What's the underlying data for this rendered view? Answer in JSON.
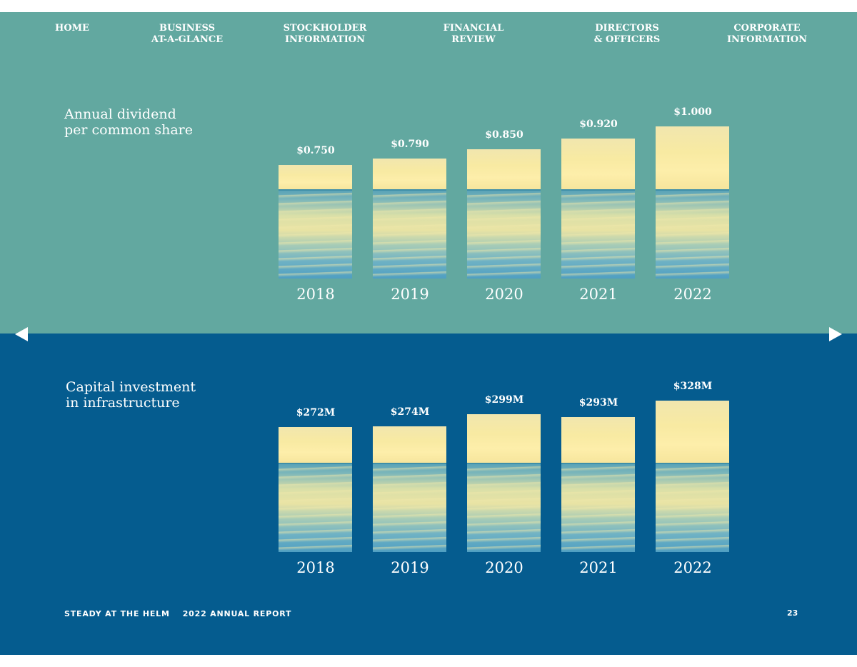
{
  "nav": {
    "items": [
      "HOME",
      "BUSINESS\nAT-A-GLANCE",
      "STOCKHOLDER\nINFORMATION",
      "FINANCIAL\nREVIEW",
      "DIRECTORS\n& OFFICERS",
      "CORPORATE\nINFORMATION"
    ]
  },
  "colors": {
    "top_panel": "#62a8a0",
    "bottom_panel": "#055c8f",
    "text": "#ffffff"
  },
  "footer": {
    "left_1": "STEADY AT THE HELM",
    "left_2": "2022 ANNUAL REPORT",
    "page_number": "23"
  },
  "icons": {
    "prev": "triangle-left-icon",
    "next": "triangle-right-icon"
  },
  "chart_data": [
    {
      "type": "bar",
      "title": "Annual dividend\nper common share",
      "categories": [
        "2018",
        "2019",
        "2020",
        "2021",
        "2022"
      ],
      "values": [
        0.75,
        0.79,
        0.85,
        0.92,
        1.0
      ],
      "value_labels": [
        "$0.750",
        "$0.790",
        "$0.850",
        "$0.920",
        "$1.000"
      ],
      "ylim": [
        0,
        1.0
      ],
      "grid": false,
      "legend": "none"
    },
    {
      "type": "bar",
      "title": "Capital investment\nin infrastructure",
      "categories": [
        "2018",
        "2019",
        "2020",
        "2021",
        "2022"
      ],
      "values": [
        272,
        274,
        299,
        293,
        328
      ],
      "value_labels": [
        "$272M",
        "$274M",
        "$299M",
        "$293M",
        "$328M"
      ],
      "ylim": [
        0,
        328
      ],
      "grid": false,
      "legend": "none"
    }
  ]
}
